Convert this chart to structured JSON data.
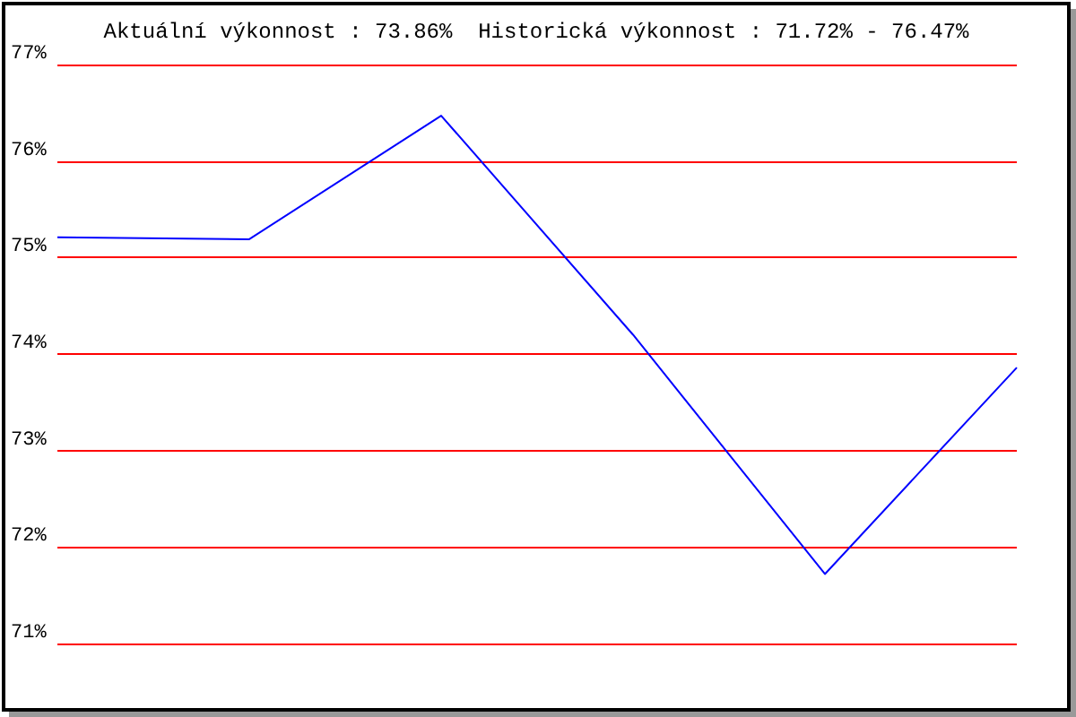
{
  "chart_data": {
    "type": "line",
    "title": "Aktuální výkonnost : 73.86%  Historická výkonnost : 71.72% - 76.47%",
    "categories": [
      null,
      null,
      null,
      null,
      null,
      null
    ],
    "series": [
      {
        "color": "#0000ff",
        "values": [
          75.21,
          75.19,
          76.47,
          74.2,
          71.72,
          73.86
        ]
      }
    ],
    "ylim": [
      71,
      77
    ],
    "yticks": [
      {
        "value": 71,
        "label": "71%"
      },
      {
        "value": 72,
        "label": "72%"
      },
      {
        "value": 73,
        "label": "73%"
      },
      {
        "value": 74,
        "label": "74%"
      },
      {
        "value": 75,
        "label": "75%"
      },
      {
        "value": 76,
        "label": "76%"
      },
      {
        "value": 77,
        "label": "77%"
      }
    ],
    "grid": "y",
    "marker": "none",
    "line_style": "solid"
  }
}
